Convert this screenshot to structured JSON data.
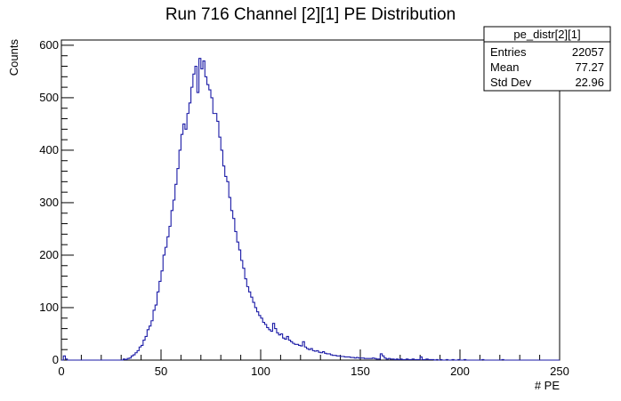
{
  "chart_data": {
    "type": "histogram",
    "title": "Run 716 Channel [2][1] PE Distribution",
    "xlabel": "# PE",
    "ylabel": "Counts",
    "xlim": [
      0,
      250
    ],
    "ylim": [
      0,
      610
    ],
    "x_ticks": [
      0,
      50,
      100,
      150,
      200,
      250
    ],
    "y_ticks": [
      0,
      100,
      200,
      300,
      400,
      500,
      600
    ],
    "bin_width": 1,
    "line_color": "#1a1aa6",
    "stats_box": {
      "name": "pe_distr[2][1]",
      "rows": [
        {
          "label": "Entries",
          "value": "22057"
        },
        {
          "label": "Mean",
          "value": "77.27"
        },
        {
          "label": "Std Dev",
          "value": "22.96"
        }
      ]
    },
    "bins": [
      [
        0,
        0
      ],
      [
        1,
        8
      ],
      [
        2,
        2
      ],
      [
        3,
        0
      ],
      [
        30,
        0
      ],
      [
        31,
        2
      ],
      [
        32,
        1
      ],
      [
        33,
        3
      ],
      [
        34,
        4
      ],
      [
        35,
        8
      ],
      [
        36,
        10
      ],
      [
        37,
        14
      ],
      [
        38,
        18
      ],
      [
        39,
        25
      ],
      [
        40,
        28
      ],
      [
        41,
        38
      ],
      [
        42,
        45
      ],
      [
        43,
        58
      ],
      [
        44,
        65
      ],
      [
        45,
        75
      ],
      [
        46,
        95
      ],
      [
        47,
        105
      ],
      [
        48,
        130
      ],
      [
        49,
        150
      ],
      [
        50,
        170
      ],
      [
        51,
        200
      ],
      [
        52,
        215
      ],
      [
        53,
        235
      ],
      [
        54,
        255
      ],
      [
        55,
        285
      ],
      [
        56,
        305
      ],
      [
        57,
        335
      ],
      [
        58,
        365
      ],
      [
        59,
        400
      ],
      [
        60,
        430
      ],
      [
        61,
        450
      ],
      [
        62,
        440
      ],
      [
        63,
        470
      ],
      [
        64,
        490
      ],
      [
        65,
        520
      ],
      [
        66,
        545
      ],
      [
        67,
        560
      ],
      [
        68,
        510
      ],
      [
        69,
        575
      ],
      [
        70,
        555
      ],
      [
        71,
        570
      ],
      [
        72,
        540
      ],
      [
        73,
        525
      ],
      [
        74,
        515
      ],
      [
        75,
        500
      ],
      [
        76,
        470
      ],
      [
        77,
        470
      ],
      [
        78,
        455
      ],
      [
        79,
        425
      ],
      [
        80,
        400
      ],
      [
        81,
        370
      ],
      [
        82,
        350
      ],
      [
        83,
        340
      ],
      [
        84,
        310
      ],
      [
        85,
        285
      ],
      [
        86,
        270
      ],
      [
        87,
        245
      ],
      [
        88,
        225
      ],
      [
        89,
        210
      ],
      [
        90,
        190
      ],
      [
        91,
        175
      ],
      [
        92,
        155
      ],
      [
        93,
        140
      ],
      [
        94,
        130
      ],
      [
        95,
        120
      ],
      [
        96,
        110
      ],
      [
        97,
        100
      ],
      [
        98,
        92
      ],
      [
        99,
        85
      ],
      [
        100,
        80
      ],
      [
        101,
        72
      ],
      [
        102,
        68
      ],
      [
        103,
        62
      ],
      [
        104,
        58
      ],
      [
        105,
        55
      ],
      [
        106,
        70
      ],
      [
        107,
        60
      ],
      [
        108,
        52
      ],
      [
        109,
        48
      ],
      [
        110,
        50
      ],
      [
        111,
        42
      ],
      [
        112,
        40
      ],
      [
        113,
        45
      ],
      [
        114,
        38
      ],
      [
        115,
        35
      ],
      [
        116,
        32
      ],
      [
        117,
        30
      ],
      [
        118,
        30
      ],
      [
        119,
        28
      ],
      [
        120,
        27
      ],
      [
        121,
        35
      ],
      [
        122,
        25
      ],
      [
        123,
        22
      ],
      [
        124,
        20
      ],
      [
        125,
        22
      ],
      [
        126,
        18
      ],
      [
        127,
        17
      ],
      [
        128,
        18
      ],
      [
        129,
        15
      ],
      [
        130,
        14
      ],
      [
        131,
        16
      ],
      [
        132,
        13
      ],
      [
        133,
        12
      ],
      [
        134,
        12
      ],
      [
        135,
        10
      ],
      [
        136,
        9
      ],
      [
        137,
        9
      ],
      [
        138,
        8
      ],
      [
        139,
        8
      ],
      [
        140,
        7
      ],
      [
        141,
        7
      ],
      [
        142,
        6
      ],
      [
        143,
        6
      ],
      [
        144,
        6
      ],
      [
        145,
        5
      ],
      [
        146,
        5
      ],
      [
        147,
        4
      ],
      [
        148,
        5
      ],
      [
        149,
        4
      ],
      [
        150,
        4
      ],
      [
        151,
        4
      ],
      [
        152,
        3
      ],
      [
        153,
        3
      ],
      [
        154,
        3
      ],
      [
        155,
        3
      ],
      [
        156,
        4
      ],
      [
        157,
        3
      ],
      [
        158,
        2
      ],
      [
        159,
        2
      ],
      [
        160,
        12
      ],
      [
        161,
        8
      ],
      [
        162,
        4
      ],
      [
        163,
        2
      ],
      [
        164,
        3
      ],
      [
        165,
        2
      ],
      [
        166,
        2
      ],
      [
        167,
        1
      ],
      [
        168,
        2
      ],
      [
        169,
        1
      ],
      [
        170,
        2
      ],
      [
        171,
        1
      ],
      [
        172,
        1
      ],
      [
        173,
        2
      ],
      [
        174,
        1
      ],
      [
        175,
        1
      ],
      [
        176,
        2
      ],
      [
        177,
        1
      ],
      [
        178,
        1
      ],
      [
        179,
        1
      ],
      [
        180,
        6
      ],
      [
        181,
        1
      ],
      [
        182,
        1
      ],
      [
        183,
        2
      ],
      [
        184,
        1
      ],
      [
        185,
        1
      ],
      [
        186,
        1
      ],
      [
        187,
        0
      ],
      [
        188,
        1
      ],
      [
        189,
        0
      ],
      [
        190,
        1
      ],
      [
        191,
        0
      ],
      [
        192,
        0
      ],
      [
        193,
        1
      ],
      [
        194,
        0
      ],
      [
        195,
        0
      ],
      [
        196,
        1
      ],
      [
        197,
        0
      ],
      [
        198,
        0
      ],
      [
        199,
        1
      ],
      [
        200,
        0
      ],
      [
        201,
        0
      ],
      [
        202,
        1
      ],
      [
        203,
        0
      ],
      [
        210,
        0
      ],
      [
        211,
        1
      ],
      [
        212,
        0
      ],
      [
        220,
        0
      ],
      [
        221,
        1
      ],
      [
        222,
        0
      ]
    ]
  }
}
